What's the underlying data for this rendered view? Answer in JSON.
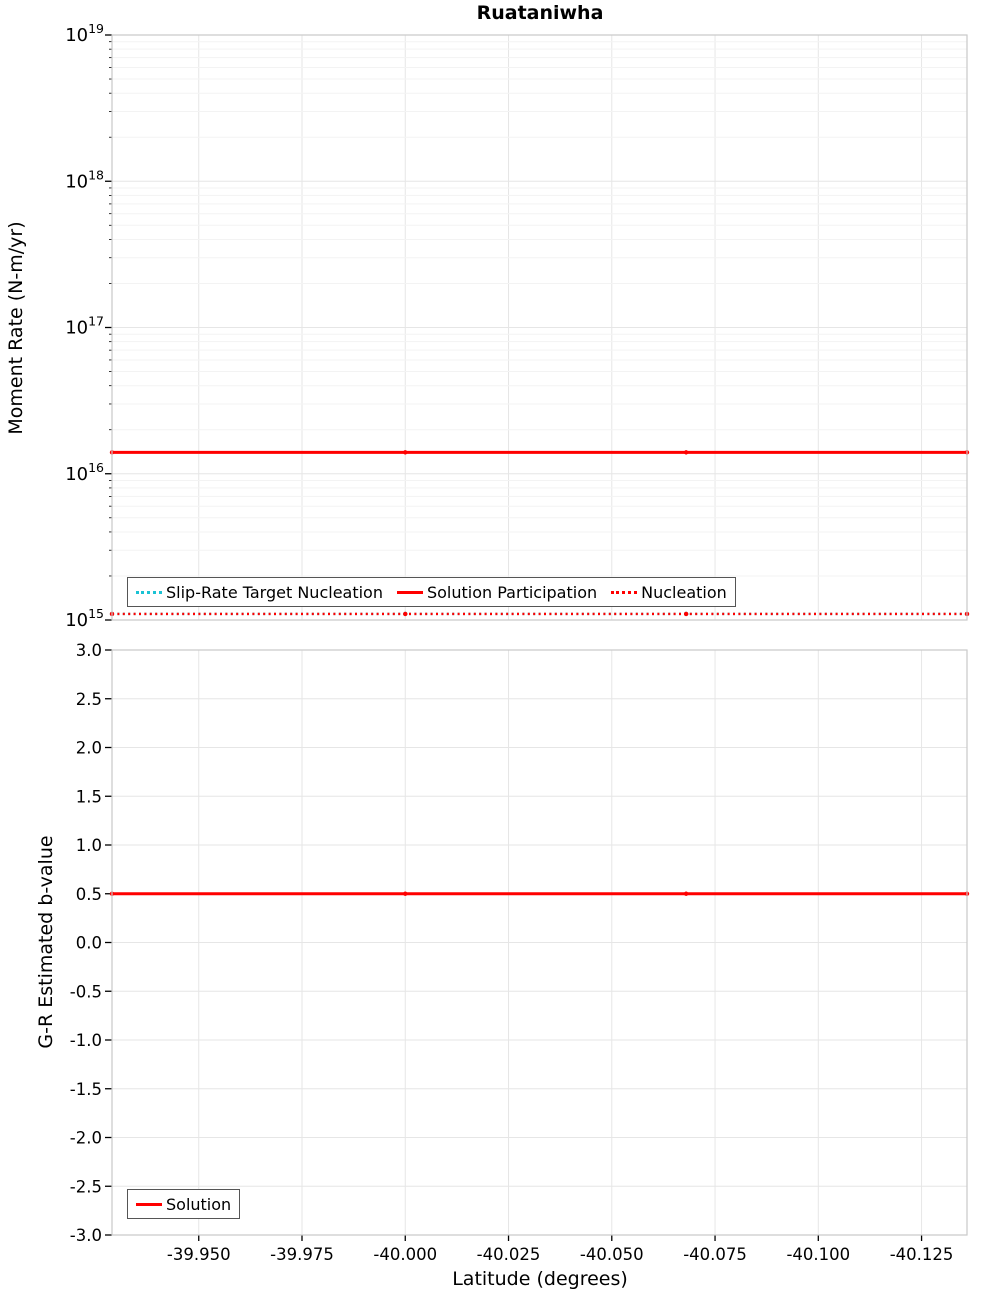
{
  "title": "Ruataniwha",
  "colors": {
    "red": "#ff0000",
    "cyan": "#1ac2d4",
    "grid": "#e6e6e6",
    "grid_minor": "#f3f3f3",
    "border": "#c9c9c9",
    "tick": "#000000"
  },
  "chart_data": [
    {
      "type": "line",
      "title": "Ruataniwha",
      "ylabel": "Moment Rate (N-m/yr)",
      "yscale": "log",
      "ylim": [
        1000000000000000.0,
        1e+19
      ],
      "ytick_exponents": [
        15,
        16,
        17,
        18,
        19
      ],
      "xlim": [
        -39.929,
        -40.136
      ],
      "xticks": [
        -39.95,
        -39.975,
        -40.0,
        -40.025,
        -40.05,
        -40.075,
        -40.1,
        -40.125
      ],
      "x_points": [
        -39.929,
        -40.0,
        -40.068,
        -40.136
      ],
      "grid": true,
      "series": [
        {
          "name": "Slip-Rate Target Nucleation",
          "color": "#1ac2d4",
          "style": "dotted",
          "value": 1100000000000000.0
        },
        {
          "name": "Solution Participation",
          "color": "#ff0000",
          "style": "solid",
          "value": 1.4e+16
        },
        {
          "name": "Nucleation",
          "color": "#ff0000",
          "style": "dotted",
          "value": 1100000000000000.0
        }
      ],
      "legend": {
        "position": "bottom-center",
        "entries": [
          "Slip-Rate Target Nucleation",
          "Solution Participation",
          "Nucleation"
        ]
      }
    },
    {
      "type": "line",
      "ylabel": "G-R Estimated b-value",
      "xlabel": "Latitude (degrees)",
      "yscale": "linear",
      "ylim": [
        -3.0,
        3.0
      ],
      "ytick_step": 0.5,
      "xlim": [
        -39.929,
        -40.136
      ],
      "xticks": [
        -39.95,
        -39.975,
        -40.0,
        -40.025,
        -40.05,
        -40.075,
        -40.1,
        -40.125
      ],
      "x_points": [
        -39.929,
        -40.0,
        -40.068,
        -40.136
      ],
      "grid": true,
      "series": [
        {
          "name": "Solution",
          "color": "#ff0000",
          "style": "solid",
          "value": 0.5
        }
      ],
      "legend": {
        "position": "bottom-left",
        "entries": [
          "Solution"
        ]
      }
    }
  ]
}
